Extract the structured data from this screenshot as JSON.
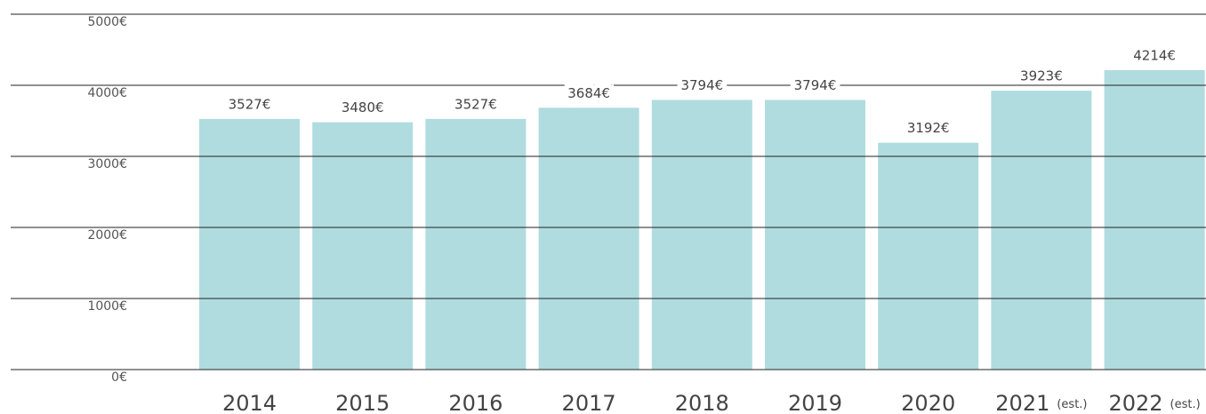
{
  "chart_data": {
    "type": "bar",
    "categories": [
      "2014",
      "2015",
      "2016",
      "2017",
      "2018",
      "2019",
      "2020",
      "2021",
      "2022"
    ],
    "category_notes": [
      null,
      null,
      null,
      null,
      null,
      null,
      null,
      "(est.)",
      "(est.)"
    ],
    "values": [
      3527,
      3480,
      3527,
      3684,
      3794,
      3794,
      3192,
      3923,
      4214
    ],
    "value_labels": [
      "3527€",
      "3480€",
      "3527€",
      "3684€",
      "3794€",
      "3794€",
      "3192€",
      "3923€",
      "4214€"
    ],
    "color": "#b0dcdf",
    "ylim": [
      0,
      5000
    ],
    "yticks": [
      {
        "value": 0,
        "label": "0€"
      },
      {
        "value": 1000,
        "label": "1000€"
      },
      {
        "value": 2000,
        "label": "2000€"
      },
      {
        "value": 3000,
        "label": "3000€"
      },
      {
        "value": 4000,
        "label": "4000€"
      },
      {
        "value": 5000,
        "label": "5000€"
      }
    ],
    "grid": true
  }
}
